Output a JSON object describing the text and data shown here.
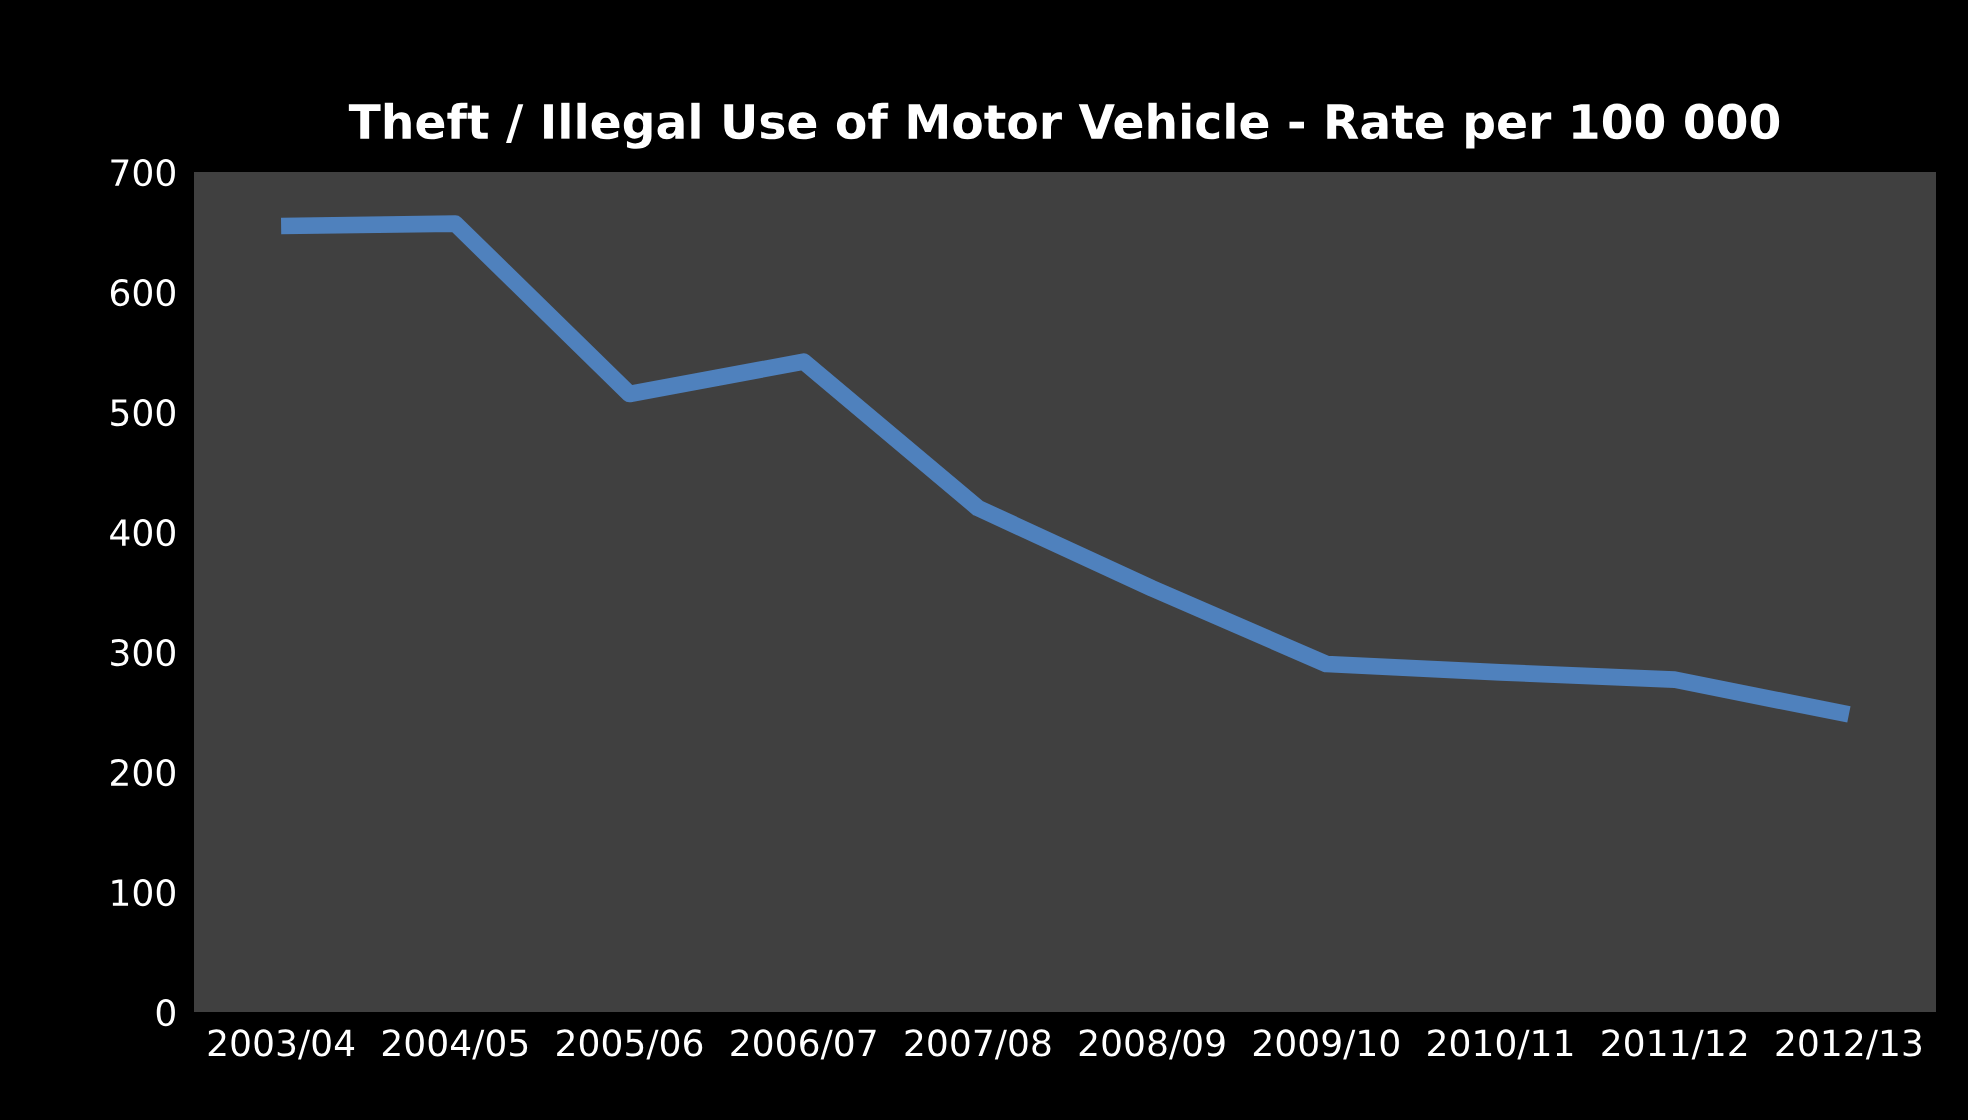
{
  "chart_data": {
    "type": "line",
    "title": "Theft / Illegal Use of Motor Vehicle - Rate per 100 000",
    "categories": [
      "2003/04",
      "2004/05",
      "2005/06",
      "2006/07",
      "2007/08",
      "2008/09",
      "2009/10",
      "2010/11",
      "2011/12",
      "2012/13"
    ],
    "series": [
      {
        "color": "#4f81bd",
        "values": [
          655,
          657,
          515,
          542,
          420,
          353,
          290,
          283,
          277,
          248
        ]
      }
    ],
    "ylim": [
      0,
      700
    ],
    "yticks": [
      0,
      100,
      200,
      300,
      400,
      500,
      600,
      700
    ],
    "grid": false,
    "marker": "none",
    "line_style": "solid"
  }
}
